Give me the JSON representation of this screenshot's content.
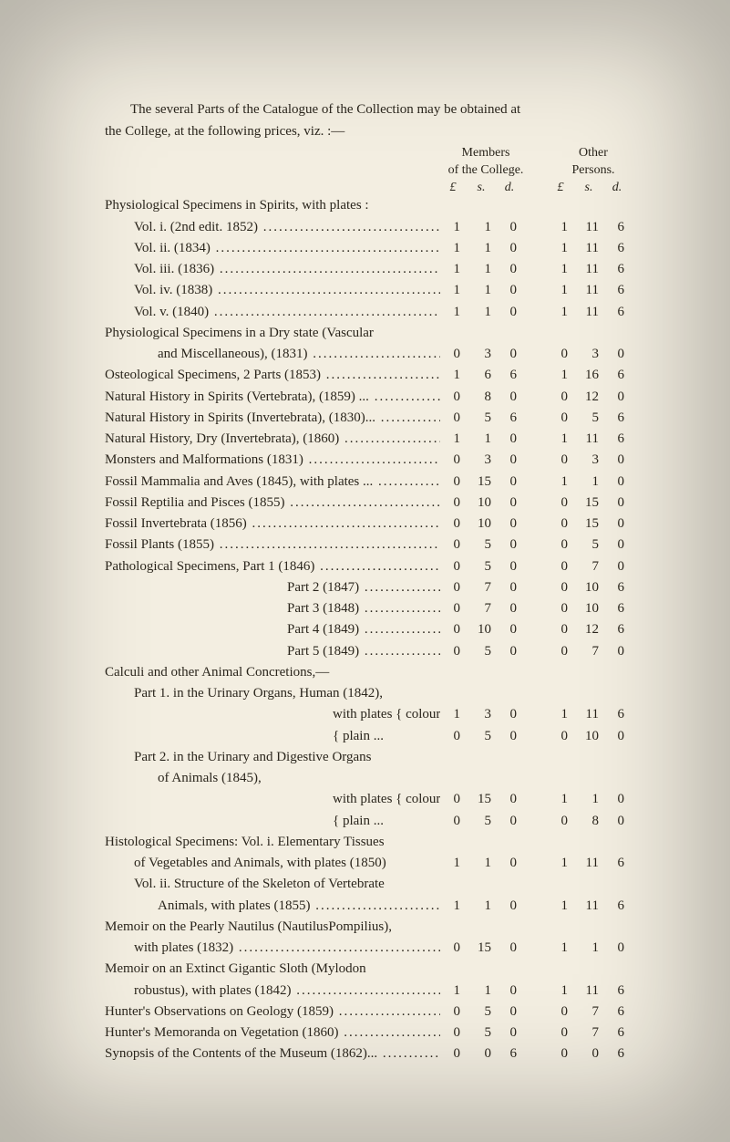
{
  "page": {
    "background": "#f3eee1",
    "text_color": "#2a251c",
    "font_family": "Times New Roman",
    "body_fontsize_pt": 11
  },
  "intro": {
    "line1": "The several Parts of the Catalogue of the Collection may be obtained at",
    "line2": "the College, at the following prices, viz. :—"
  },
  "headers": {
    "members_1": "Members",
    "members_2": "of the College.",
    "other_1": "Other",
    "other_2": "Persons.",
    "money_p": "£",
    "money_s": "s.",
    "money_d": "d."
  },
  "rows": [
    {
      "indent": 0,
      "nodots": true,
      "label": "Physiological Specimens in Spirits, with plates :"
    },
    {
      "indent": 1,
      "label": "Vol. i.   (2nd edit. 1852)",
      "m": [
        "1",
        "1",
        "0"
      ],
      "o": [
        "1",
        "11",
        "6"
      ]
    },
    {
      "indent": 1,
      "label": "Vol. ii.  (1834)",
      "m": [
        "1",
        "1",
        "0"
      ],
      "o": [
        "1",
        "11",
        "6"
      ]
    },
    {
      "indent": 1,
      "label": "Vol. iii. (1836)",
      "m": [
        "1",
        "1",
        "0"
      ],
      "o": [
        "1",
        "11",
        "6"
      ]
    },
    {
      "indent": 1,
      "label": "Vol. iv. (1838)",
      "m": [
        "1",
        "1",
        "0"
      ],
      "o": [
        "1",
        "11",
        "6"
      ]
    },
    {
      "indent": 1,
      "label": "Vol. v.  (1840)",
      "m": [
        "1",
        "1",
        "0"
      ],
      "o": [
        "1",
        "11",
        "6"
      ]
    },
    {
      "indent": 0,
      "nodots": true,
      "label": "Physiological Specimens in a Dry state (Vascular"
    },
    {
      "indent": 2,
      "label": "and Miscellaneous), (1831)",
      "m": [
        "0",
        "3",
        "0"
      ],
      "o": [
        "0",
        "3",
        "0"
      ]
    },
    {
      "indent": 0,
      "label": "Osteological Specimens, 2 Parts (1853)",
      "m": [
        "1",
        "6",
        "6"
      ],
      "o": [
        "1",
        "16",
        "6"
      ]
    },
    {
      "indent": 0,
      "label": "Natural History in Spirits (Vertebrata), (1859) ...",
      "m": [
        "0",
        "8",
        "0"
      ],
      "o": [
        "0",
        "12",
        "0"
      ]
    },
    {
      "indent": 0,
      "label": "Natural History in Spirits (Invertebrata), (1830)...",
      "m": [
        "0",
        "5",
        "6"
      ],
      "o": [
        "0",
        "5",
        "6"
      ]
    },
    {
      "indent": 0,
      "label": "Natural History, Dry (Invertebrata), (1860)",
      "m": [
        "1",
        "1",
        "0"
      ],
      "o": [
        "1",
        "11",
        "6"
      ]
    },
    {
      "indent": 0,
      "label": "Monsters and Malformations (1831)",
      "m": [
        "0",
        "3",
        "0"
      ],
      "o": [
        "0",
        "3",
        "0"
      ]
    },
    {
      "indent": 0,
      "label": "Fossil Mammalia and Aves (1845), with plates ...",
      "m": [
        "0",
        "15",
        "0"
      ],
      "o": [
        "1",
        "1",
        "0"
      ]
    },
    {
      "indent": 0,
      "label": "Fossil Reptilia and Pisces (1855)",
      "m": [
        "0",
        "10",
        "0"
      ],
      "o": [
        "0",
        "15",
        "0"
      ]
    },
    {
      "indent": 0,
      "label": "Fossil Invertebrata (1856)",
      "m": [
        "0",
        "10",
        "0"
      ],
      "o": [
        "0",
        "15",
        "0"
      ]
    },
    {
      "indent": 0,
      "label": "Fossil Plants (1855)",
      "m": [
        "0",
        "5",
        "0"
      ],
      "o": [
        "0",
        "5",
        "0"
      ]
    },
    {
      "indent": 0,
      "label": "Pathological Specimens, Part 1 (1846)",
      "m": [
        "0",
        "5",
        "0"
      ],
      "o": [
        "0",
        "7",
        "0"
      ]
    },
    {
      "indent": 3,
      "label": "Part 2 (1847)",
      "m": [
        "0",
        "7",
        "0"
      ],
      "o": [
        "0",
        "10",
        "6"
      ]
    },
    {
      "indent": 3,
      "label": "Part 3 (1848)",
      "m": [
        "0",
        "7",
        "0"
      ],
      "o": [
        "0",
        "10",
        "6"
      ]
    },
    {
      "indent": 3,
      "label": "Part 4 (1849)",
      "m": [
        "0",
        "10",
        "0"
      ],
      "o": [
        "0",
        "12",
        "6"
      ]
    },
    {
      "indent": 3,
      "label": "Part 5 (1849)",
      "m": [
        "0",
        "5",
        "0"
      ],
      "o": [
        "0",
        "7",
        "0"
      ]
    },
    {
      "indent": 0,
      "nodots": true,
      "label": "Calculi and other Animal Concretions,—"
    },
    {
      "indent": 1,
      "nodots": true,
      "label": "Part 1. in the Urinary Organs, Human (1842),"
    },
    {
      "indent": 4,
      "nodots": true,
      "label": "with plates { coloured",
      "m": [
        "1",
        "3",
        "0"
      ],
      "o": [
        "1",
        "11",
        "6"
      ]
    },
    {
      "indent": 4,
      "nodots": true,
      "label": "                     { plain  ...",
      "m": [
        "0",
        "5",
        "0"
      ],
      "o": [
        "0",
        "10",
        "0"
      ]
    },
    {
      "indent": 1,
      "nodots": true,
      "label": "Part 2. in the Urinary and Digestive Organs"
    },
    {
      "indent": 2,
      "nodots": true,
      "label": "      of Animals (1845),"
    },
    {
      "indent": 4,
      "nodots": true,
      "label": "with plates { coloured",
      "m": [
        "0",
        "15",
        "0"
      ],
      "o": [
        "1",
        "1",
        "0"
      ]
    },
    {
      "indent": 4,
      "nodots": true,
      "label": "                     { plain  ...",
      "m": [
        "0",
        "5",
        "0"
      ],
      "o": [
        "0",
        "8",
        "0"
      ]
    },
    {
      "indent": 0,
      "nodots": true,
      "label": "Histological Specimens: Vol. i. Elementary Tissues"
    },
    {
      "indent": 1,
      "nodots": true,
      "label": "of Vegetables and Animals, with plates (1850)",
      "m": [
        "1",
        "1",
        "0"
      ],
      "o": [
        "1",
        "11",
        "6"
      ]
    },
    {
      "indent": 1,
      "nodots": true,
      "label": "Vol. ii. Structure of the Skeleton of Vertebrate"
    },
    {
      "indent": 2,
      "label": "Animals, with plates (1855)",
      "m": [
        "1",
        "1",
        "0"
      ],
      "o": [
        "1",
        "11",
        "6"
      ]
    },
    {
      "indent": 0,
      "nodots": true,
      "label": "Memoir on the Pearly Nautilus (NautilusPompilius),"
    },
    {
      "indent": 1,
      "label": "with plates (1832)",
      "m": [
        "0",
        "15",
        "0"
      ],
      "o": [
        "1",
        "1",
        "0"
      ]
    },
    {
      "indent": 0,
      "nodots": true,
      "label": "Memoir on an Extinct Gigantic Sloth (Mylodon"
    },
    {
      "indent": 1,
      "label": "robustus), with plates (1842)",
      "m": [
        "1",
        "1",
        "0"
      ],
      "o": [
        "1",
        "11",
        "6"
      ]
    },
    {
      "indent": 0,
      "label": "Hunter's Observations on Geology (1859)",
      "m": [
        "0",
        "5",
        "0"
      ],
      "o": [
        "0",
        "7",
        "6"
      ]
    },
    {
      "indent": 0,
      "label": "Hunter's Memoranda on Vegetation (1860)",
      "m": [
        "0",
        "5",
        "0"
      ],
      "o": [
        "0",
        "7",
        "6"
      ]
    },
    {
      "indent": 0,
      "label": "Synopsis of the Contents of the Museum (1862)...",
      "m": [
        "0",
        "0",
        "6"
      ],
      "o": [
        "0",
        "0",
        "6"
      ]
    }
  ]
}
